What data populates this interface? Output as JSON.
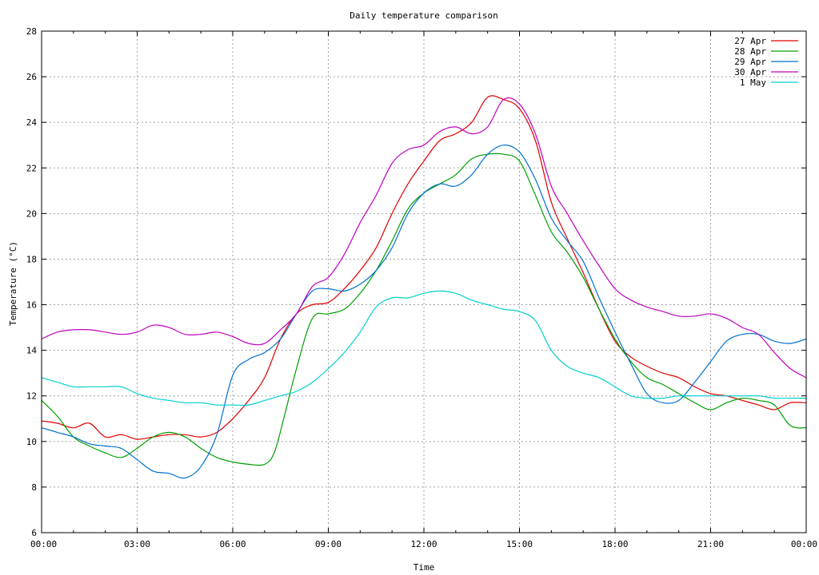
{
  "chart_data": {
    "type": "line",
    "title": "Daily temperature comparison",
    "xlabel": "Time",
    "ylabel": "Temperature (°C)",
    "xlim": [
      0,
      24
    ],
    "ylim": [
      6,
      28
    ],
    "grid": true,
    "legend_position": "top-right",
    "x_ticks": [
      {
        "value": 0,
        "label": "00:00"
      },
      {
        "value": 3,
        "label": "03:00"
      },
      {
        "value": 6,
        "label": "06:00"
      },
      {
        "value": 9,
        "label": "09:00"
      },
      {
        "value": 12,
        "label": "12:00"
      },
      {
        "value": 15,
        "label": "15:00"
      },
      {
        "value": 18,
        "label": "18:00"
      },
      {
        "value": 21,
        "label": "21:00"
      },
      {
        "value": 24,
        "label": "00:00"
      }
    ],
    "y_ticks": [
      6,
      8,
      10,
      12,
      14,
      16,
      18,
      20,
      22,
      24,
      26,
      28
    ],
    "x_unit": "hours",
    "series": [
      {
        "name": "27 Apr",
        "color": "#e00000",
        "x": [
          0,
          0.5,
          1,
          1.5,
          2,
          2.5,
          3,
          3.5,
          4,
          4.5,
          5,
          5.5,
          6,
          6.5,
          7,
          7.5,
          8,
          8.5,
          9,
          9.5,
          10,
          10.5,
          11,
          11.5,
          12,
          12.5,
          13,
          13.5,
          14,
          14.5,
          15,
          15.5,
          16,
          16.5,
          17,
          17.5,
          18,
          18.5,
          19,
          19.5,
          20,
          20.5,
          21,
          21.5,
          22,
          22.5,
          23,
          23.5,
          24
        ],
        "values": [
          10.9,
          10.8,
          10.6,
          10.8,
          10.2,
          10.3,
          10.1,
          10.2,
          10.3,
          10.3,
          10.2,
          10.4,
          11.0,
          11.8,
          12.8,
          14.5,
          15.6,
          16.0,
          16.1,
          16.7,
          17.5,
          18.5,
          20.0,
          21.3,
          22.3,
          23.2,
          23.5,
          24.0,
          25.1,
          25.0,
          24.6,
          23.2,
          20.5,
          18.9,
          17.4,
          15.8,
          14.4,
          13.7,
          13.3,
          13.0,
          12.8,
          12.4,
          12.1,
          12.0,
          11.8,
          11.6,
          11.4,
          11.7,
          11.7
        ]
      },
      {
        "name": "28 Apr",
        "color": "#00a000",
        "x": [
          0,
          0.5,
          1,
          1.5,
          2,
          2.5,
          3,
          3.5,
          4,
          4.5,
          5,
          5.5,
          6,
          6.5,
          7,
          7.3,
          7.6,
          8,
          8.5,
          9,
          9.5,
          10,
          10.5,
          11,
          11.5,
          12,
          12.5,
          13,
          13.5,
          14,
          14.5,
          15,
          15.5,
          16,
          16.5,
          17,
          17.5,
          18,
          18.5,
          19,
          19.5,
          20,
          20.5,
          21,
          21.5,
          22,
          22.5,
          23,
          23.5,
          24
        ],
        "values": [
          11.8,
          11.1,
          10.2,
          9.8,
          9.5,
          9.3,
          9.7,
          10.2,
          10.4,
          10.2,
          9.7,
          9.3,
          9.1,
          9.0,
          9.0,
          9.5,
          11.0,
          13.2,
          15.4,
          15.6,
          15.8,
          16.5,
          17.5,
          18.8,
          20.2,
          20.9,
          21.3,
          21.7,
          22.4,
          22.6,
          22.6,
          22.3,
          20.8,
          19.2,
          18.3,
          17.2,
          15.8,
          14.5,
          13.5,
          12.8,
          12.5,
          12.1,
          11.7,
          11.4,
          11.7,
          11.9,
          11.8,
          11.6,
          10.7,
          10.6
        ]
      },
      {
        "name": "29 Apr",
        "color": "#0070d0",
        "x": [
          0,
          0.5,
          1,
          1.5,
          2,
          2.5,
          3,
          3.5,
          4,
          4.5,
          5,
          5.5,
          6,
          6.5,
          7,
          7.5,
          8,
          8.5,
          9,
          9.5,
          10,
          10.5,
          11,
          11.5,
          12,
          12.5,
          13,
          13.5,
          14,
          14.5,
          15,
          15.5,
          16,
          16.5,
          17,
          17.5,
          18,
          18.5,
          19,
          19.5,
          20,
          20.5,
          21,
          21.5,
          22,
          22.5,
          23,
          23.5,
          24
        ],
        "values": [
          10.6,
          10.4,
          10.2,
          9.9,
          9.8,
          9.7,
          9.2,
          8.7,
          8.6,
          8.4,
          8.9,
          10.3,
          12.9,
          13.6,
          13.9,
          14.5,
          15.6,
          16.6,
          16.7,
          16.6,
          16.9,
          17.5,
          18.5,
          20.0,
          20.9,
          21.3,
          21.2,
          21.7,
          22.6,
          23.0,
          22.7,
          21.5,
          19.8,
          18.8,
          17.9,
          16.3,
          14.8,
          13.4,
          12.1,
          11.7,
          11.8,
          12.6,
          13.5,
          14.4,
          14.7,
          14.7,
          14.4,
          14.3,
          14.5
        ]
      },
      {
        "name": "30 Apr",
        "color": "#c000c0",
        "x": [
          0,
          0.5,
          1,
          1.5,
          2,
          2.5,
          3,
          3.5,
          4,
          4.5,
          5,
          5.5,
          6,
          6.5,
          7,
          7.5,
          8,
          8.5,
          9,
          9.5,
          10,
          10.5,
          11,
          11.5,
          12,
          12.5,
          13,
          13.5,
          14,
          14.5,
          15,
          15.5,
          16,
          16.5,
          17,
          17.5,
          18,
          18.5,
          19,
          19.5,
          20,
          20.5,
          21,
          21.5,
          22,
          22.5,
          23,
          23.5,
          24
        ],
        "values": [
          14.5,
          14.8,
          14.9,
          14.9,
          14.8,
          14.7,
          14.8,
          15.1,
          15.0,
          14.7,
          14.7,
          14.8,
          14.6,
          14.3,
          14.3,
          14.9,
          15.6,
          16.8,
          17.2,
          18.2,
          19.6,
          20.8,
          22.2,
          22.8,
          23.0,
          23.6,
          23.8,
          23.5,
          23.8,
          25.0,
          24.8,
          23.5,
          21.2,
          20.0,
          18.8,
          17.7,
          16.7,
          16.2,
          15.9,
          15.7,
          15.5,
          15.5,
          15.6,
          15.4,
          15.0,
          14.7,
          13.9,
          13.2,
          12.8
        ]
      },
      {
        "name": "1 May",
        "color": "#00d0d0",
        "x": [
          0,
          0.5,
          1,
          1.5,
          2,
          2.5,
          3,
          3.5,
          4,
          4.5,
          5,
          5.5,
          6,
          6.5,
          7,
          7.5,
          8,
          8.5,
          9,
          9.5,
          10,
          10.5,
          11,
          11.5,
          12,
          12.5,
          13,
          13.5,
          14,
          14.5,
          15,
          15.5,
          16,
          16.5,
          17,
          17.5,
          18,
          18.5,
          19,
          19.5,
          20,
          20.5,
          21,
          21.5,
          22,
          22.5,
          23,
          23.5,
          24
        ],
        "values": [
          12.8,
          12.6,
          12.4,
          12.4,
          12.4,
          12.4,
          12.1,
          11.9,
          11.8,
          11.7,
          11.7,
          11.6,
          11.6,
          11.6,
          11.8,
          12.0,
          12.2,
          12.6,
          13.2,
          13.9,
          14.8,
          15.9,
          16.3,
          16.3,
          16.5,
          16.6,
          16.5,
          16.2,
          16.0,
          15.8,
          15.7,
          15.3,
          14.0,
          13.3,
          13.0,
          12.8,
          12.4,
          12.0,
          11.9,
          11.9,
          12.0,
          12.0,
          12.0,
          12.0,
          12.0,
          12.0,
          11.9,
          11.9,
          11.9
        ]
      }
    ]
  }
}
